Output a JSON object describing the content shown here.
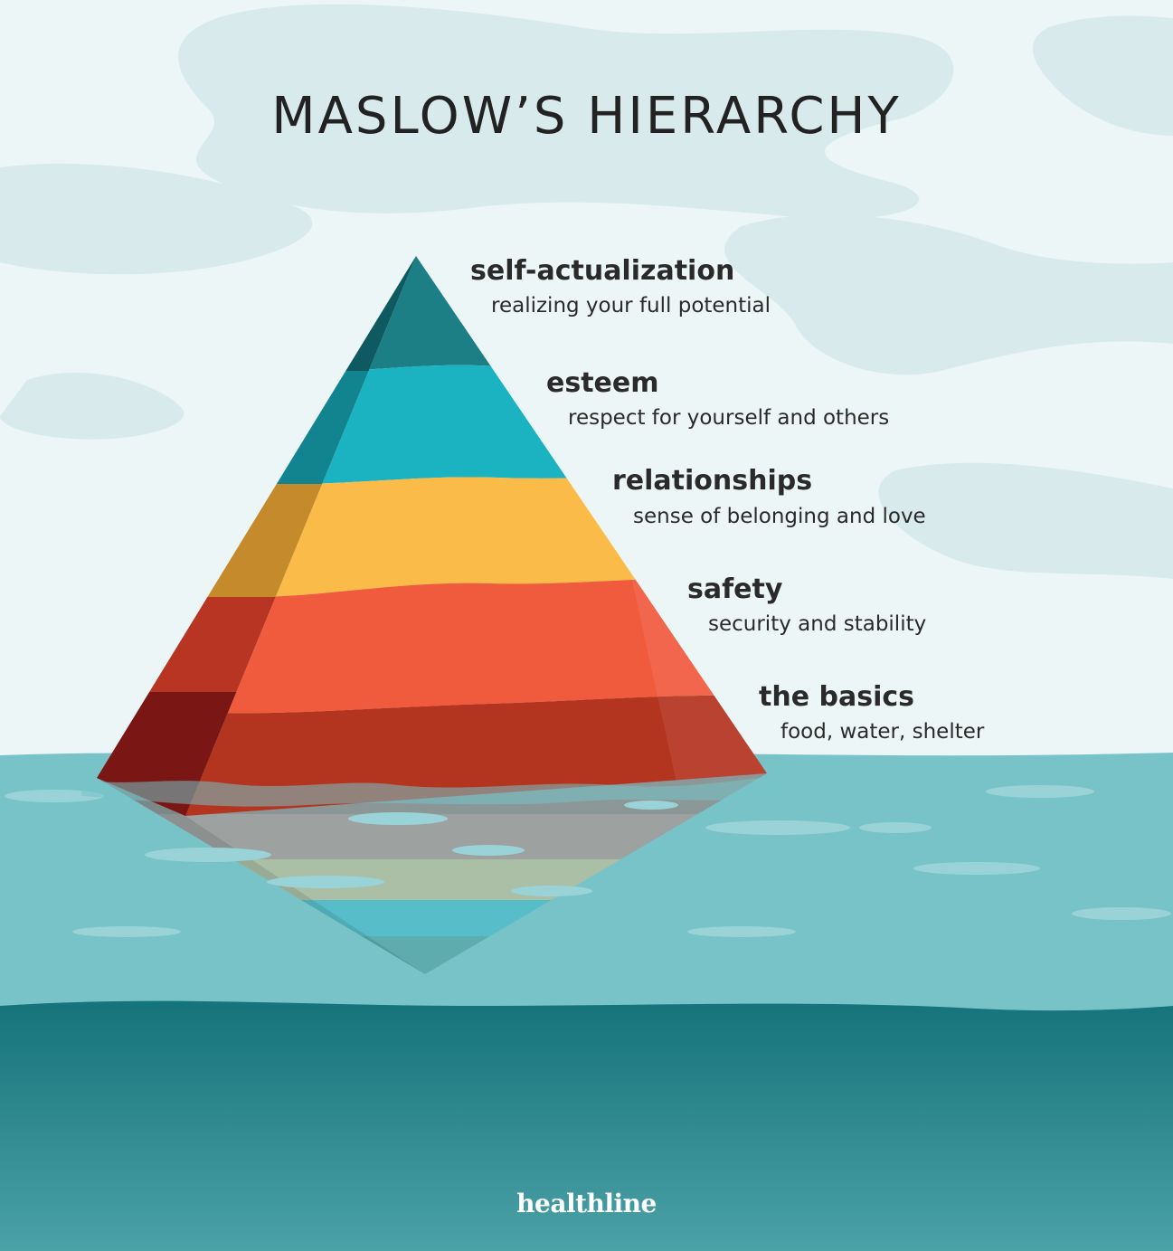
{
  "title": "MASLOW’S HIERARCHY",
  "levels": [
    {
      "label": "self-actualization",
      "description": "realizing your full potential",
      "color": "#1d7f86"
    },
    {
      "label": "esteem",
      "description": "respect for yourself and others",
      "color": "#1bb3c1"
    },
    {
      "label": "relationships",
      "description": "sense of belonging and love",
      "color": "#fbbb48"
    },
    {
      "label": "safety",
      "description": "security and stability",
      "color": "#f05a3d"
    },
    {
      "label": "the basics",
      "description": "food, water, shelter",
      "color": "#b3341f"
    }
  ],
  "brand": "healthline"
}
